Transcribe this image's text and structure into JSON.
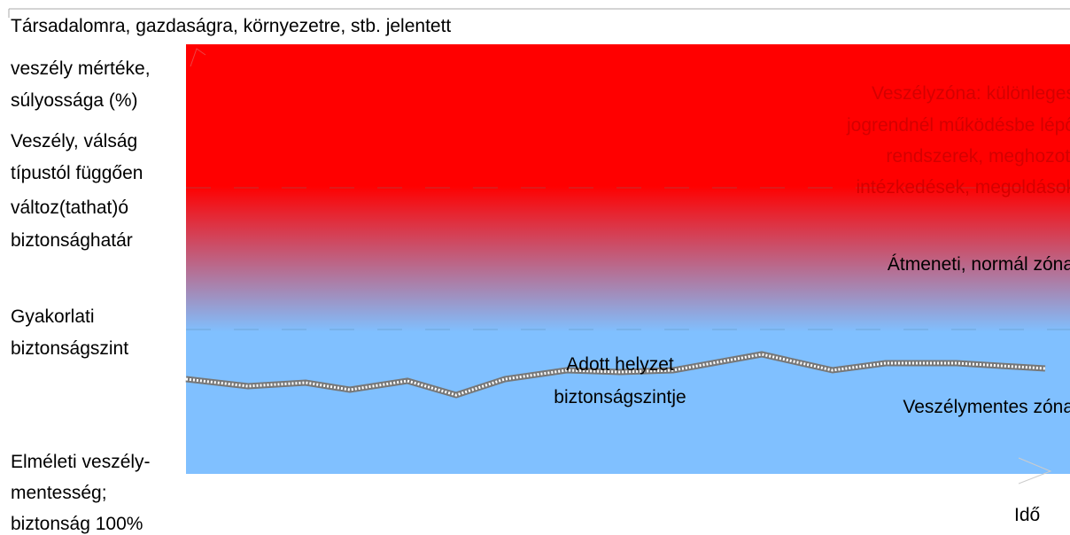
{
  "axis_title": [
    "Társadalomra, gazdaságra, környezetre, stb. jelentett",
    "veszély mértéke,",
    "súlyossága (%)"
  ],
  "limit_label": [
    "Veszély, válság",
    "típustól függően",
    "változ(tathat)ó",
    "biztonsághatár"
  ],
  "practical_label": [
    "Gyakorlati",
    "biztonságszint"
  ],
  "theoretical_label": [
    "Elméleti veszély-",
    "mentesség;",
    "biztonság 100%"
  ],
  "danger_zone": [
    "Veszélyzóna: különleges",
    "jogrendnél működésbe lépő",
    "rendszerek, meghozott",
    "intézkedések, megoldások"
  ],
  "transition_zone": "Átmeneti, normál zóna",
  "safe_zone": "Veszélymentes zóna",
  "current_level": [
    "Adott helyzet",
    "biztonságszintje"
  ],
  "time_axis": "Idő"
}
